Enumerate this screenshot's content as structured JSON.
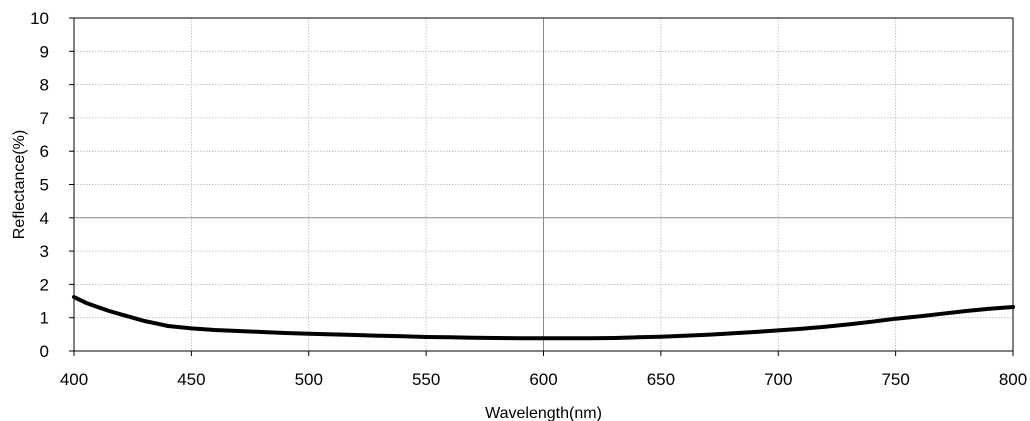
{
  "chart_data": {
    "type": "line",
    "title": "",
    "xlabel": "Wavelength(nm)",
    "ylabel": "Reflectance(%)",
    "xlim": [
      400,
      800
    ],
    "ylim": [
      0,
      10
    ],
    "x_ticks": [
      400,
      450,
      500,
      550,
      600,
      650,
      700,
      750,
      800
    ],
    "y_ticks": [
      0,
      1,
      2,
      3,
      4,
      5,
      6,
      7,
      8,
      9,
      10
    ],
    "x_tick_labels": [
      "400",
      "450",
      "500",
      "550",
      "600",
      "650",
      "700",
      "750",
      "800"
    ],
    "y_tick_labels": [
      "0",
      "1",
      "2",
      "3",
      "4",
      "5",
      "6",
      "7",
      "8",
      "9",
      "10"
    ],
    "grid": true,
    "legend": "none",
    "series": [
      {
        "color": "#000000",
        "x": [
          400,
          405,
          410,
          415,
          420,
          425,
          430,
          435,
          440,
          450,
          460,
          470,
          480,
          490,
          500,
          510,
          520,
          530,
          540,
          550,
          560,
          570,
          580,
          590,
          600,
          610,
          620,
          630,
          640,
          650,
          660,
          670,
          680,
          690,
          700,
          710,
          720,
          730,
          740,
          750,
          760,
          770,
          780,
          790,
          800
        ],
        "y": [
          1.62,
          1.45,
          1.32,
          1.2,
          1.1,
          1.0,
          0.9,
          0.83,
          0.75,
          0.68,
          0.63,
          0.6,
          0.57,
          0.54,
          0.52,
          0.5,
          0.48,
          0.46,
          0.44,
          0.42,
          0.41,
          0.4,
          0.39,
          0.38,
          0.38,
          0.38,
          0.38,
          0.39,
          0.41,
          0.43,
          0.46,
          0.49,
          0.53,
          0.57,
          0.62,
          0.67,
          0.73,
          0.8,
          0.88,
          0.97,
          1.04,
          1.12,
          1.2,
          1.27,
          1.32
        ]
      }
    ]
  }
}
